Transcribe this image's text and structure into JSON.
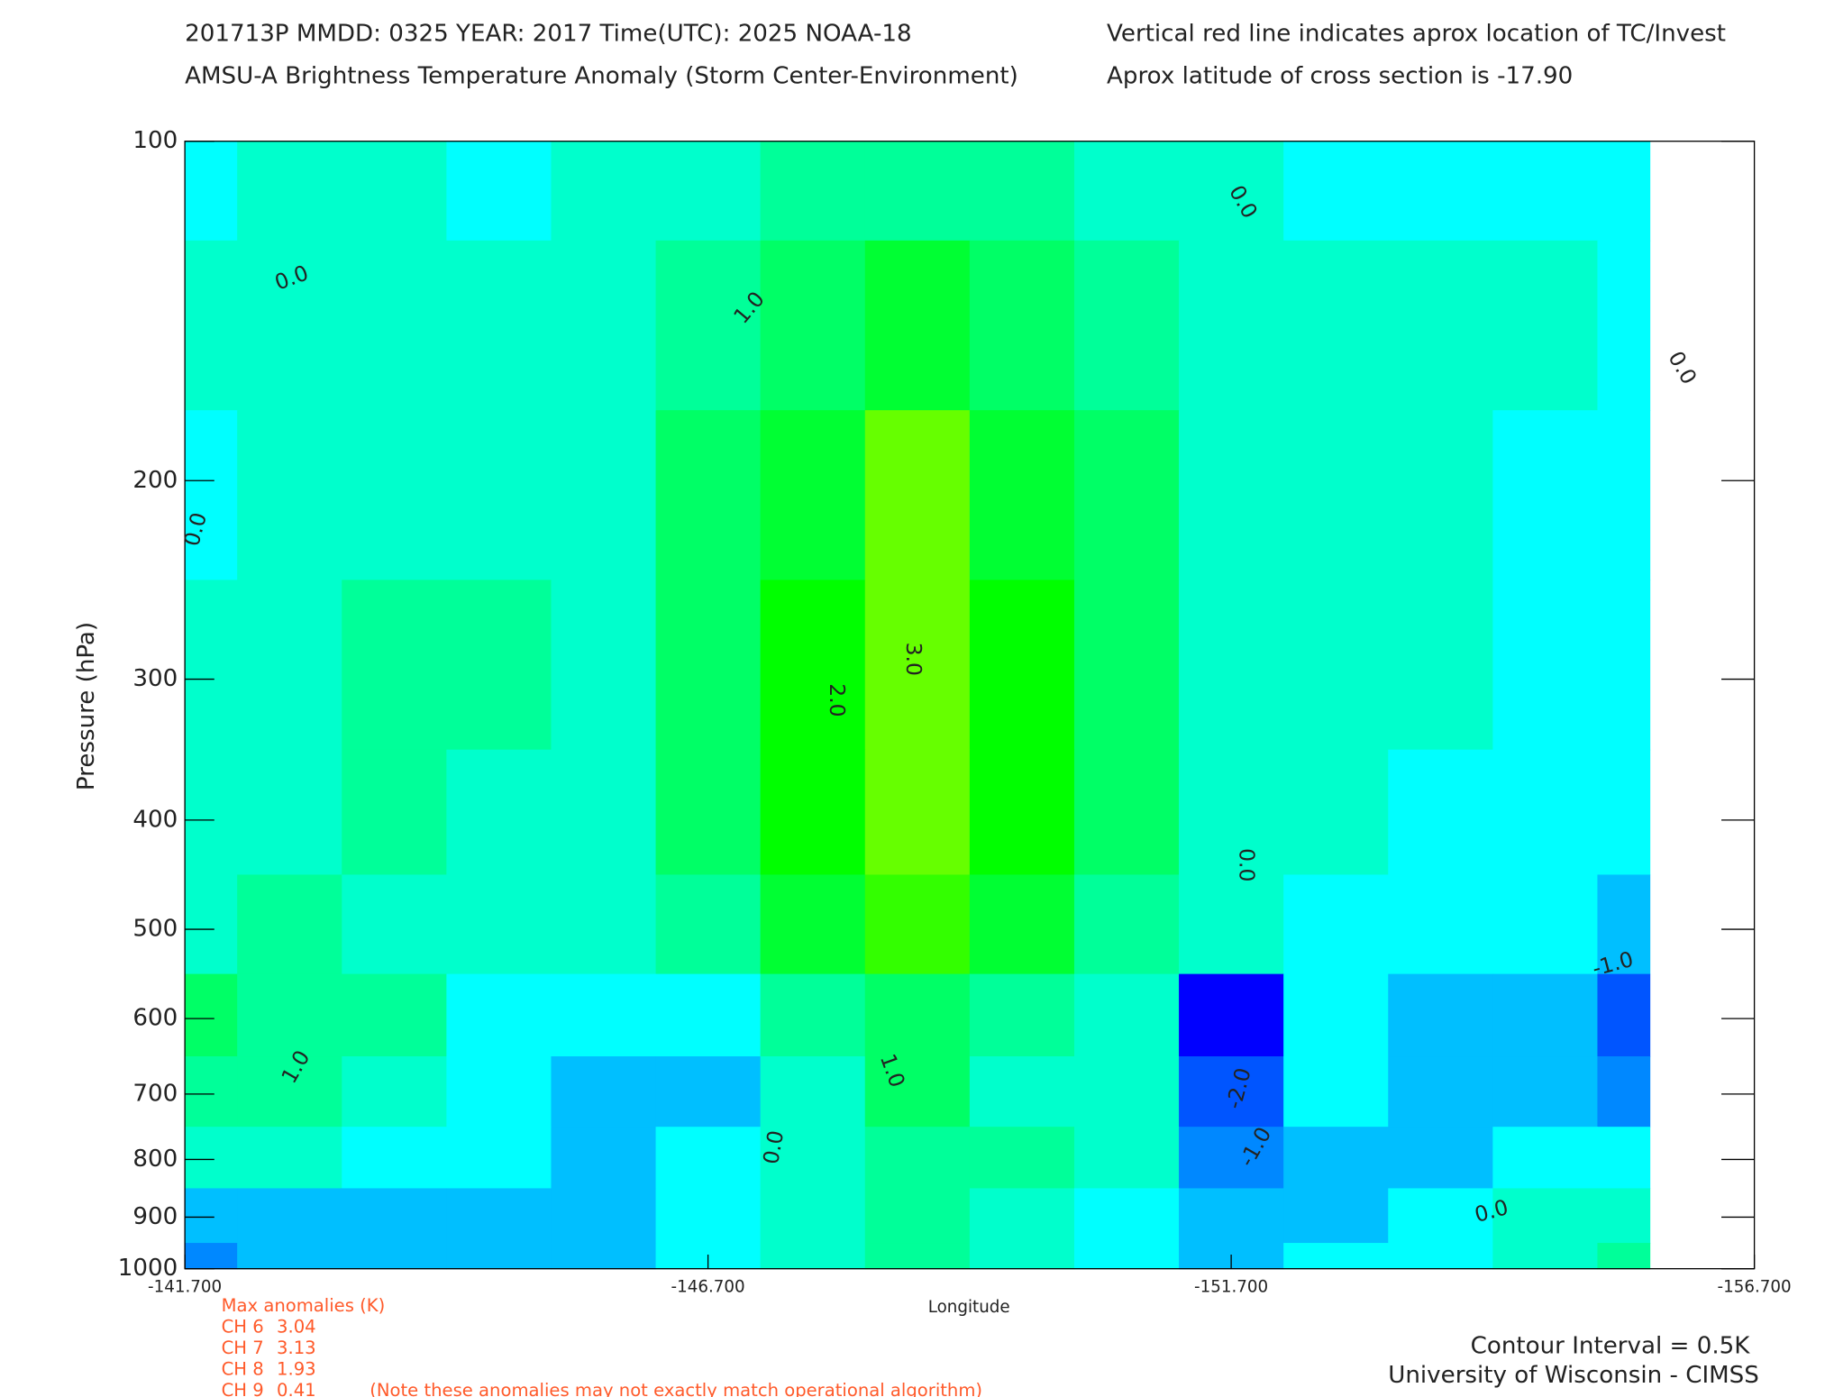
{
  "chart_data": {
    "type": "contour",
    "title_lines": [
      "201713P  MMDD: 0325 YEAR: 2017 Time(UTC): 2025 NOAA-18",
      "AMSU-A Brightness Temperature Anomaly (Storm Center-Environment)"
    ],
    "subtitle_lines": [
      "Vertical red line indicates aprox location of TC/Invest",
      "Aprox latitude of cross section is -17.90"
    ],
    "x_label": "Longitude",
    "y_label": "Pressure (hPa)",
    "xlim": [
      -141.7,
      -156.7
    ],
    "xticks": [
      {
        "value": -141.7,
        "label": "-141.700"
      },
      {
        "value": -146.7,
        "label": "-146.700"
      },
      {
        "value": -151.7,
        "label": "-151.700"
      },
      {
        "value": -156.7,
        "label": "-156.700"
      }
    ],
    "ylim": [
      100,
      1000
    ],
    "yscale": "log",
    "yticks": [
      100,
      200,
      300,
      400,
      500,
      600,
      700,
      800,
      900,
      1000
    ],
    "x": [
      -141.7,
      -142.7,
      -143.7,
      -144.7,
      -145.7,
      -146.7,
      -147.7,
      -148.7,
      -149.7,
      -150.7,
      -151.7,
      -152.7,
      -153.7,
      -154.7,
      -155.7
    ],
    "y": [
      100,
      150,
      200,
      300,
      400,
      500,
      600,
      700,
      800,
      900,
      1000
    ],
    "values": [
      [
        -0.2,
        0.1,
        0.2,
        -0.1,
        0.1,
        0.3,
        0.6,
        0.7,
        0.5,
        0.2,
        0.1,
        -0.1,
        -0.1,
        -0.1,
        -0.2
      ],
      [
        0.1,
        0.3,
        0.3,
        0.2,
        0.4,
        0.9,
        1.4,
        1.7,
        1.3,
        0.7,
        0.4,
        0.3,
        0.2,
        0.0,
        -0.2
      ],
      [
        -0.1,
        0.2,
        0.4,
        0.3,
        0.4,
        1.0,
        1.8,
        3.0,
        1.9,
        1.0,
        0.4,
        0.3,
        0.2,
        -0.1,
        -0.2
      ],
      [
        0.2,
        0.3,
        0.6,
        0.5,
        0.4,
        1.1,
        2.0,
        3.1,
        2.1,
        1.1,
        0.3,
        0.2,
        0.1,
        -0.2,
        -0.2
      ],
      [
        0.3,
        0.4,
        0.6,
        0.4,
        0.3,
        1.1,
        2.1,
        3.0,
        2.0,
        1.0,
        0.1,
        0.1,
        -0.1,
        -0.2,
        -0.2
      ],
      [
        0.3,
        0.6,
        0.4,
        0.3,
        0.3,
        0.8,
        1.6,
        2.5,
        1.7,
        0.8,
        0.1,
        -0.1,
        -0.3,
        -0.4,
        -0.6
      ],
      [
        1.2,
        0.8,
        0.5,
        -0.2,
        -0.3,
        -0.2,
        0.5,
        1.4,
        0.5,
        0.3,
        -2.3,
        -0.4,
        -0.8,
        -1.0,
        -2.0
      ],
      [
        0.8,
        0.6,
        0.3,
        -0.3,
        -0.6,
        -0.6,
        0.3,
        1.0,
        0.3,
        0.2,
        -1.8,
        -0.2,
        -0.9,
        -0.9,
        -1.1
      ],
      [
        0.2,
        0.1,
        -0.2,
        -0.4,
        -0.7,
        -0.5,
        0.4,
        0.6,
        0.5,
        0.1,
        -1.3,
        -0.6,
        -0.6,
        -0.5,
        -0.3
      ],
      [
        -0.7,
        -0.6,
        -0.6,
        -0.6,
        -0.8,
        -0.3,
        0.4,
        0.6,
        0.4,
        -0.3,
        -0.6,
        -0.6,
        -0.4,
        0.1,
        0.4
      ],
      [
        -1.2,
        -0.9,
        -0.8,
        -0.7,
        -0.7,
        -0.4,
        0.3,
        0.6,
        0.4,
        -0.2,
        -0.6,
        -0.5,
        -0.2,
        0.4,
        0.7
      ]
    ],
    "levels": [
      -2,
      -1.5,
      -1,
      -0.5,
      0,
      0.5,
      1,
      1.5,
      2,
      2.5,
      3
    ],
    "colors": [
      "#0000ff",
      "#0055ff",
      "#0088ff",
      "#00bfff",
      "#00ffff",
      "#00ffcc",
      "#00ff99",
      "#00ff66",
      "#00ff33",
      "#00ff00",
      "#33ff00",
      "#66ff00"
    ],
    "contour_labels": [
      "0.0",
      "0.0",
      "1.0",
      "2.0",
      "3.0",
      "1.0",
      "0.0",
      "1.0",
      "0.0",
      "0.0",
      "0.0",
      "-2.0",
      "-1.0",
      "-1.0",
      "0.0"
    ],
    "max_anomalies": {
      "title": "Max anomalies (K)",
      "channels": [
        "CH 6",
        "CH 7",
        "CH 8",
        "CH 9"
      ],
      "values": [
        3.04,
        3.13,
        1.93,
        0.41
      ]
    },
    "note": "(Note these anomalies may not exactly match operational algorithm)",
    "credits": [
      "Contour Interval = 0.5K",
      "University of Wisconsin - CIMSS"
    ]
  }
}
